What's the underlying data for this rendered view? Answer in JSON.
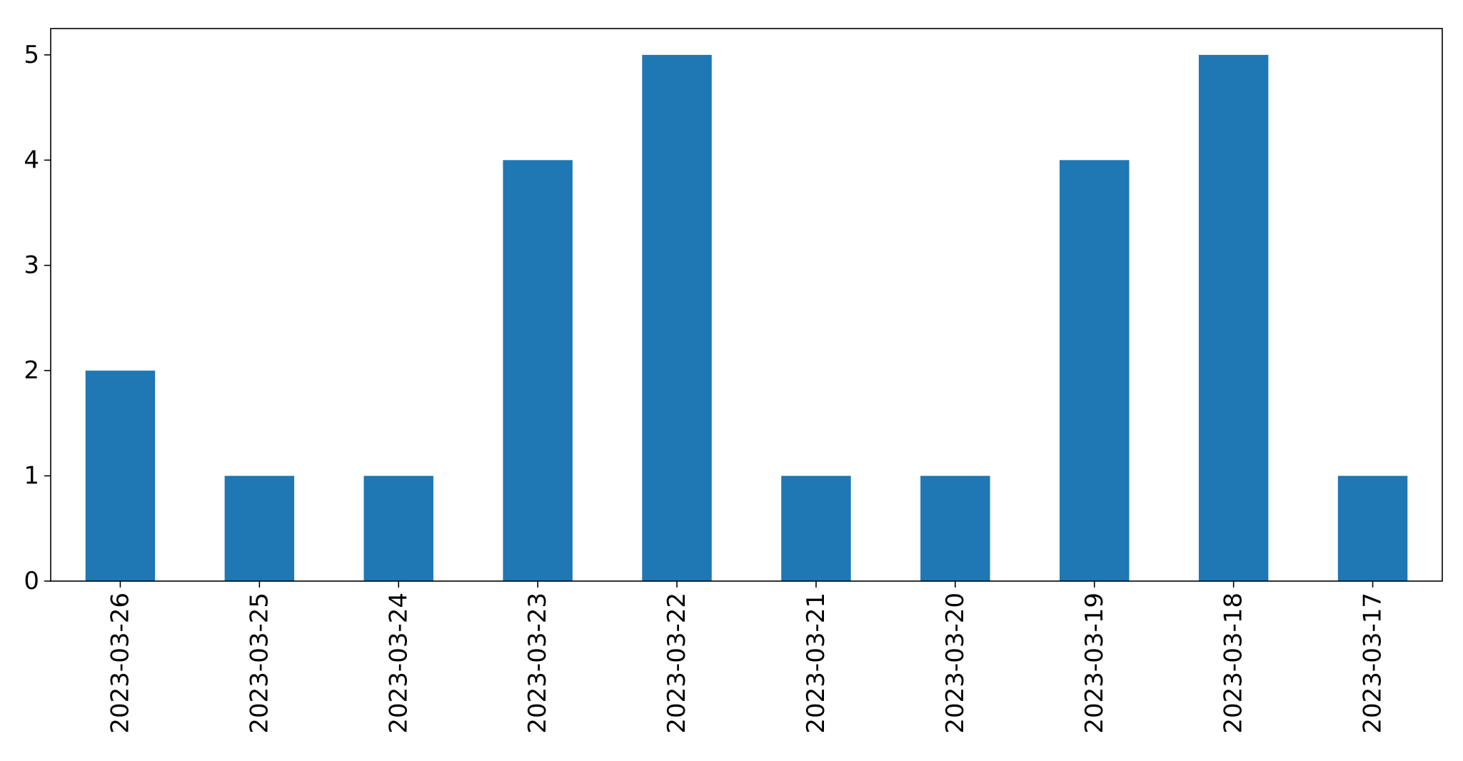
{
  "chart_data": {
    "type": "bar",
    "categories": [
      "2023-03-26",
      "2023-03-25",
      "2023-03-24",
      "2023-03-23",
      "2023-03-22",
      "2023-03-21",
      "2023-03-20",
      "2023-03-19",
      "2023-03-18",
      "2023-03-17"
    ],
    "values": [
      2,
      1,
      1,
      4,
      5,
      1,
      1,
      4,
      5,
      1
    ],
    "yticks": [
      "0",
      "1",
      "2",
      "3",
      "4",
      "5"
    ],
    "ylim": [
      0,
      5.25
    ],
    "title": "",
    "xlabel": "",
    "ylabel": "",
    "grid": false,
    "bar_color": "#1f77b4",
    "axis_color": "#000000"
  }
}
